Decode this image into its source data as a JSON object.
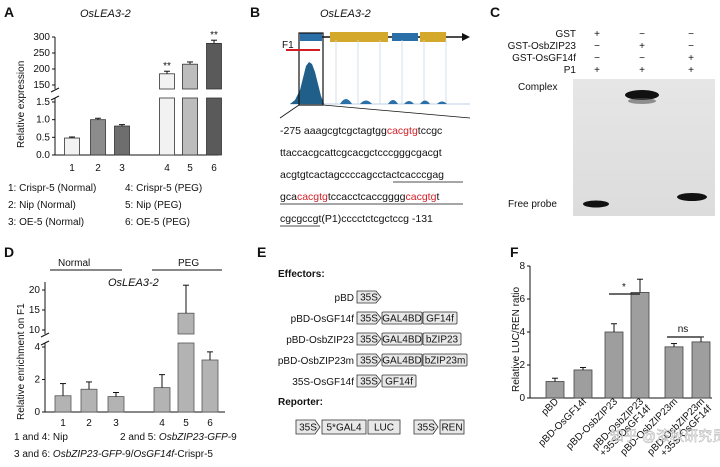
{
  "panelA": {
    "label": "A",
    "title": "OsLEA3-2",
    "ylabel": "Relative expression",
    "yticks_low": [
      "0.0",
      "0.5",
      "1.0",
      "1.5"
    ],
    "yticks_high": [
      "150",
      "200",
      "250",
      "300"
    ],
    "categories": [
      "1",
      "2",
      "3",
      "4",
      "5",
      "6"
    ],
    "values": [
      0.48,
      1.0,
      0.82,
      185,
      215,
      280
    ],
    "errors": [
      0.03,
      0.04,
      0.04,
      8,
      7,
      10
    ],
    "colors": [
      "#f2f2f2",
      "#8c8c8c",
      "#6e6e6e",
      "#f2f2f2",
      "#bdbdbd",
      "#5a5a5a"
    ],
    "sig": [
      "**",
      "**"
    ],
    "legend": [
      "1: Crispr-5 (Normal)",
      "4: Crispr-5 (PEG)",
      "2: Nip (Normal)",
      "5: Nip (PEG)",
      "3: OE-5 (Normal)",
      "6: OE-5 (PEG)"
    ]
  },
  "panelB": {
    "label": "B",
    "title": "OsLEA3-2",
    "f1": "F1",
    "seq": {
      "l1a": "-275 aaagcgtcgctagtgg",
      "l1r": "cacgtg",
      "l1b": "tccgc",
      "l2": "ttaccacgcattcgcacgctcccgggcgacgt",
      "l3": "acgtgtcactagccccagcctactcacccgag",
      "l4a": "gca",
      "l4r1": "cacgtg",
      "l4b": "tccacctcaccgggg",
      "l4r2": "cacgtg",
      "l4c": "t",
      "l5": "cgcgccgt(P1)cccctctcgctccg -131"
    }
  },
  "panelC": {
    "label": "C",
    "rows": [
      "GST",
      "GST-OsbZIP23",
      "GST-OsGF14f",
      "P1"
    ],
    "signs": [
      [
        "+",
        "−",
        "−"
      ],
      [
        "−",
        "+",
        "−"
      ],
      [
        "−",
        "−",
        "+"
      ],
      [
        "+",
        "+",
        "+"
      ]
    ],
    "complex": "Complex",
    "free": "Free probe"
  },
  "panelD": {
    "label": "D",
    "title": "OsLEA3-2",
    "ylabel": "Relative enrichment on F1",
    "group1": "Normal",
    "group2": "PEG",
    "yticks_low": [
      "0",
      "2",
      "4"
    ],
    "yticks_high": [
      "10",
      "15",
      "20"
    ],
    "categories": [
      "1",
      "2",
      "3",
      "4",
      "5",
      "6"
    ],
    "values": [
      1.0,
      1.4,
      0.95,
      1.5,
      14.2,
      3.2
    ],
    "errors": [
      0.75,
      0.45,
      0.25,
      0.8,
      7.0,
      0.5
    ],
    "legend1": "1 and 4: Nip",
    "legend2a": "2 and 5: ",
    "legend2b": "OsbZIP23-GFP",
    "legend2c": "-9",
    "legend3a": "3 and 6: ",
    "legend3b": "OsbZIP23-GFP",
    "legend3c": "-9/",
    "legend3d": "OsGF14f",
    "legend3e": "-Crispr-5"
  },
  "panelE": {
    "label": "E",
    "effectors": "Effectors:",
    "reporter": "Reporter:",
    "rows": [
      {
        "name": "pBD",
        "boxes": [
          "35S"
        ]
      },
      {
        "name": "pBD-OsGF14f",
        "boxes": [
          "35S",
          "GAL4BD",
          "GF14f"
        ]
      },
      {
        "name": "pBD-OsbZIP23",
        "boxes": [
          "35S",
          "GAL4BD",
          "bZIP23"
        ]
      },
      {
        "name": "pBD-OsbZIP23m",
        "boxes": [
          "35S",
          "GAL4BD",
          "bZIP23m"
        ]
      },
      {
        "name": "35S-OsGF14f",
        "boxes": [
          "35S",
          "GF14f"
        ]
      }
    ],
    "reporter_boxes": [
      "35S",
      "5*GAL4",
      "LUC",
      "35S",
      "REN"
    ]
  },
  "panelF": {
    "label": "F",
    "ylabel": "Relative LUC/REN ratio",
    "yticks": [
      "0",
      "2",
      "4",
      "6",
      "8"
    ],
    "categories": [
      "pBD",
      "pBD-OsGF14f",
      "pBD-OsbZIP23",
      "pBD-OsbZIP23 +35S-OsGF14f",
      "pBD-OsbZIP23m",
      "pBD-OsbZIP23m +35S-OsGF14f"
    ],
    "values": [
      1.0,
      1.7,
      4.0,
      6.4,
      3.1,
      3.4
    ],
    "errors": [
      0.2,
      0.15,
      0.5,
      0.8,
      0.2,
      0.3
    ],
    "sig1": "*",
    "sig2": "ns"
  },
  "watermark": "知乎 @漆秋研究员"
}
